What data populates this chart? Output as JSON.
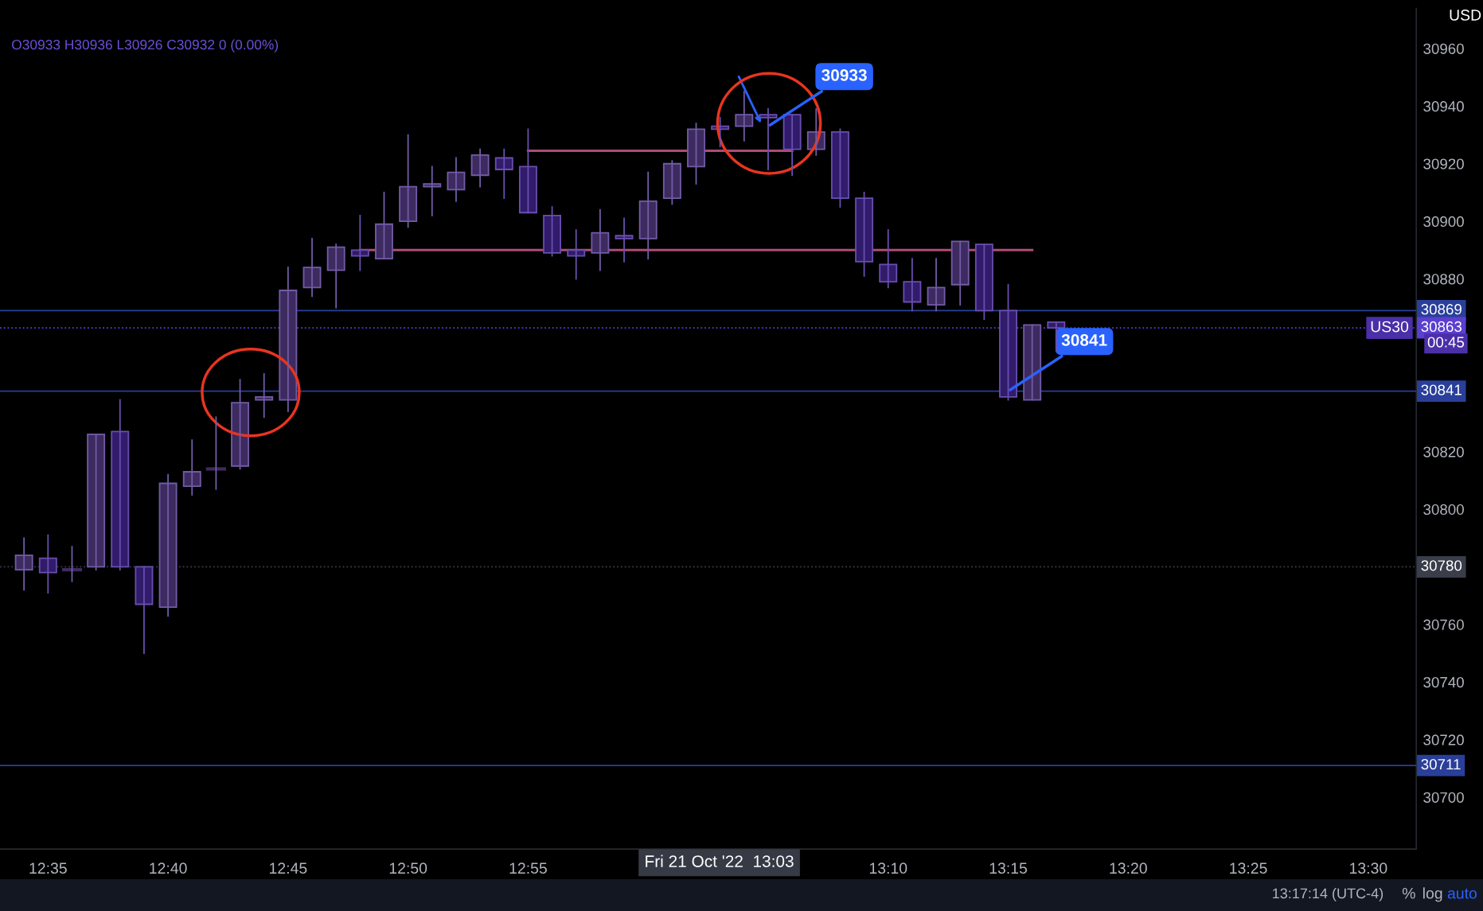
{
  "chart_data": {
    "type": "candlestick",
    "title": "O30933 H30936 L30926 C30932 0 (0.00%)",
    "x": [
      "2022-10-21T12:34",
      "2022-10-21T12:35",
      "2022-10-21T12:36",
      "2022-10-21T12:37",
      "2022-10-21T12:38",
      "2022-10-21T12:39",
      "2022-10-21T12:40",
      "2022-10-21T12:41",
      "2022-10-21T12:42",
      "2022-10-21T12:43",
      "2022-10-21T12:44",
      "2022-10-21T12:45",
      "2022-10-21T12:46",
      "2022-10-21T12:47",
      "2022-10-21T12:48",
      "2022-10-21T12:49",
      "2022-10-21T12:50",
      "2022-10-21T12:51",
      "2022-10-21T12:52",
      "2022-10-21T12:53",
      "2022-10-21T12:54",
      "2022-10-21T12:55",
      "2022-10-21T12:56",
      "2022-10-21T12:57",
      "2022-10-21T12:58",
      "2022-10-21T12:59",
      "2022-10-21T13:00",
      "2022-10-21T13:01",
      "2022-10-21T13:02",
      "2022-10-21T13:03",
      "2022-10-21T13:04",
      "2022-10-21T13:05",
      "2022-10-21T13:06",
      "2022-10-21T13:07",
      "2022-10-21T13:08",
      "2022-10-21T13:09",
      "2022-10-21T13:10",
      "2022-10-21T13:11",
      "2022-10-21T13:12",
      "2022-10-21T13:13",
      "2022-10-21T13:14",
      "2022-10-21T13:15",
      "2022-10-21T13:16",
      "2022-10-21T13:17"
    ],
    "ohlc": [
      [
        30779,
        30790,
        30772,
        30784
      ],
      [
        30783,
        30791,
        30771,
        30778
      ],
      [
        30779,
        30787,
        30775,
        30779
      ],
      [
        30780,
        30826,
        30779,
        30826
      ],
      [
        30827,
        30838,
        30779,
        30780
      ],
      [
        30780,
        30780,
        30750,
        30767
      ],
      [
        30766,
        30812,
        30763,
        30809
      ],
      [
        30808,
        30824,
        30805,
        30813
      ],
      [
        30814,
        30832,
        30807,
        30814
      ],
      [
        30815,
        30845,
        30814,
        30837
      ],
      [
        30838,
        30847,
        30832,
        30839
      ],
      [
        30838,
        30884,
        30834,
        30876
      ],
      [
        30877,
        30894,
        30874,
        30884
      ],
      [
        30883,
        30892,
        30870,
        30891
      ],
      [
        30890,
        30902,
        30883,
        30888
      ],
      [
        30887,
        30910,
        30887,
        30899
      ],
      [
        30900,
        30930,
        30898,
        30912
      ],
      [
        30912,
        30919,
        30902,
        30913
      ],
      [
        30911,
        30922,
        30907,
        30917
      ],
      [
        30916,
        30925,
        30912,
        30923
      ],
      [
        30922,
        30925,
        30908,
        30918
      ],
      [
        30919,
        30932,
        30903,
        30903
      ],
      [
        30902,
        30905,
        30888,
        30889
      ],
      [
        30890,
        30897,
        30880,
        30888
      ],
      [
        30889,
        30904,
        30883,
        30896
      ],
      [
        30895,
        30901,
        30886,
        30894
      ],
      [
        30894,
        30917,
        30887,
        30907
      ],
      [
        30908,
        30921,
        30906,
        30920
      ],
      [
        30919,
        30934,
        30913,
        30932
      ],
      [
        30933,
        30936,
        30926,
        30932
      ],
      [
        30933,
        30945,
        30928,
        30937
      ],
      [
        30937,
        30939,
        30918,
        30936
      ],
      [
        30937,
        30937,
        30916,
        30925
      ],
      [
        30925,
        30939,
        30923,
        30931
      ],
      [
        30931,
        30932,
        30905,
        30908
      ],
      [
        30908,
        30910,
        30881,
        30886
      ],
      [
        30885,
        30897,
        30877,
        30879
      ],
      [
        30879,
        30887,
        30869,
        30872
      ],
      [
        30871,
        30887,
        30869,
        30877
      ],
      [
        30878,
        30893,
        30871,
        30893
      ],
      [
        30892,
        30892,
        30866,
        30869
      ],
      [
        30869,
        30878,
        30838,
        30839
      ],
      [
        30838,
        30864,
        30838,
        30864
      ],
      [
        30865,
        30865,
        30855,
        30863
      ]
    ],
    "colors": [
      "#3d2b5f",
      "#311b6b",
      "#3d2b5f",
      "#3d2b5f",
      "#311b6b",
      "#311b6b",
      "#3d2b5f",
      "#3d2b5f",
      "#3d2b5f",
      "#3d2b5f",
      "#3d2b5f",
      "#3d2b5f",
      "#3d2b5f",
      "#3d2b5f",
      "#311b6b",
      "#3d2b5f",
      "#3d2b5f",
      "#3d2b5f",
      "#3d2b5f",
      "#3d2b5f",
      "#311b6b",
      "#311b6b",
      "#311b6b",
      "#311b6b",
      "#3d2b5f",
      "#311b6b",
      "#3d2b5f",
      "#3d2b5f",
      "#3d2b5f",
      "#311b6b",
      "#3d2b5f",
      "#311b6b",
      "#311b6b",
      "#3d2b5f",
      "#311b6b",
      "#311b6b",
      "#311b6b",
      "#311b6b",
      "#3d2b5f",
      "#3d2b5f",
      "#311b6b",
      "#311b6b",
      "#3d2b5f",
      "#311b6b"
    ],
    "series": [
      {
        "type": "line",
        "color": "#b04a78",
        "x": [
          "2022-10-21T12:55",
          "2022-10-21T13:06"
        ],
        "values": [
          30924.5,
          30924.5
        ]
      },
      {
        "type": "line",
        "color": "#b04a78",
        "x": [
          "2022-10-21T12:48",
          "2022-10-21T13:16"
        ],
        "values": [
          30890,
          30890
        ]
      }
    ],
    "ref_lines": [
      {
        "axis": "y",
        "value": 30869,
        "label": "30869",
        "color": "#2a3f9a",
        "line_style": "solid"
      },
      {
        "axis": "y",
        "value": 30863,
        "label": "30863",
        "color": "#5b3fd0",
        "line_style": "dotted"
      },
      {
        "axis": "y",
        "value": 30841,
        "label": "30841",
        "color": "#2a3f9a",
        "line_style": "solid"
      },
      {
        "axis": "y",
        "value": 30780,
        "label": "30780",
        "color": "#3a3e4a",
        "line_style": "dotted"
      },
      {
        "axis": "y",
        "value": 30711,
        "label": "30711",
        "color": "#2a3f9a",
        "line_style": "solid"
      }
    ],
    "annotations": [
      {
        "text": "30933",
        "x": "2022-10-21T13:05",
        "y": 30933
      },
      {
        "text": "30841",
        "x": "2022-10-21T13:15",
        "y": 30841
      },
      "USD",
      "US30",
      "00:45",
      "Fri 21 Oct '22  13:03",
      "13:17:14 (UTC-4)",
      "%",
      "log",
      "auto"
    ],
    "xlim": [
      "2022-10-21T12:33",
      "2022-10-21T13:32"
    ],
    "xticks": [
      {
        "value": "2022-10-21T12:35",
        "label": "12:35"
      },
      {
        "value": "2022-10-21T12:40",
        "label": "12:40"
      },
      {
        "value": "2022-10-21T12:45",
        "label": "12:45"
      },
      {
        "value": "2022-10-21T12:50",
        "label": "12:50"
      },
      {
        "value": "2022-10-21T12:55",
        "label": "12:55"
      },
      {
        "value": "2022-10-21T13:10",
        "label": "13:10"
      },
      {
        "value": "2022-10-21T13:15",
        "label": "13:15"
      },
      {
        "value": "2022-10-21T13:20",
        "label": "13:20"
      },
      {
        "value": "2022-10-21T13:25",
        "label": "13:25"
      },
      {
        "value": "2022-10-21T13:30",
        "label": "13:30"
      }
    ],
    "ylim": [
      30682,
      30974
    ],
    "yticks": [
      30700,
      30720,
      30740,
      30760,
      30780,
      30800,
      30820,
      30880,
      30900,
      30920,
      30940,
      30960
    ],
    "grid": false
  }
}
